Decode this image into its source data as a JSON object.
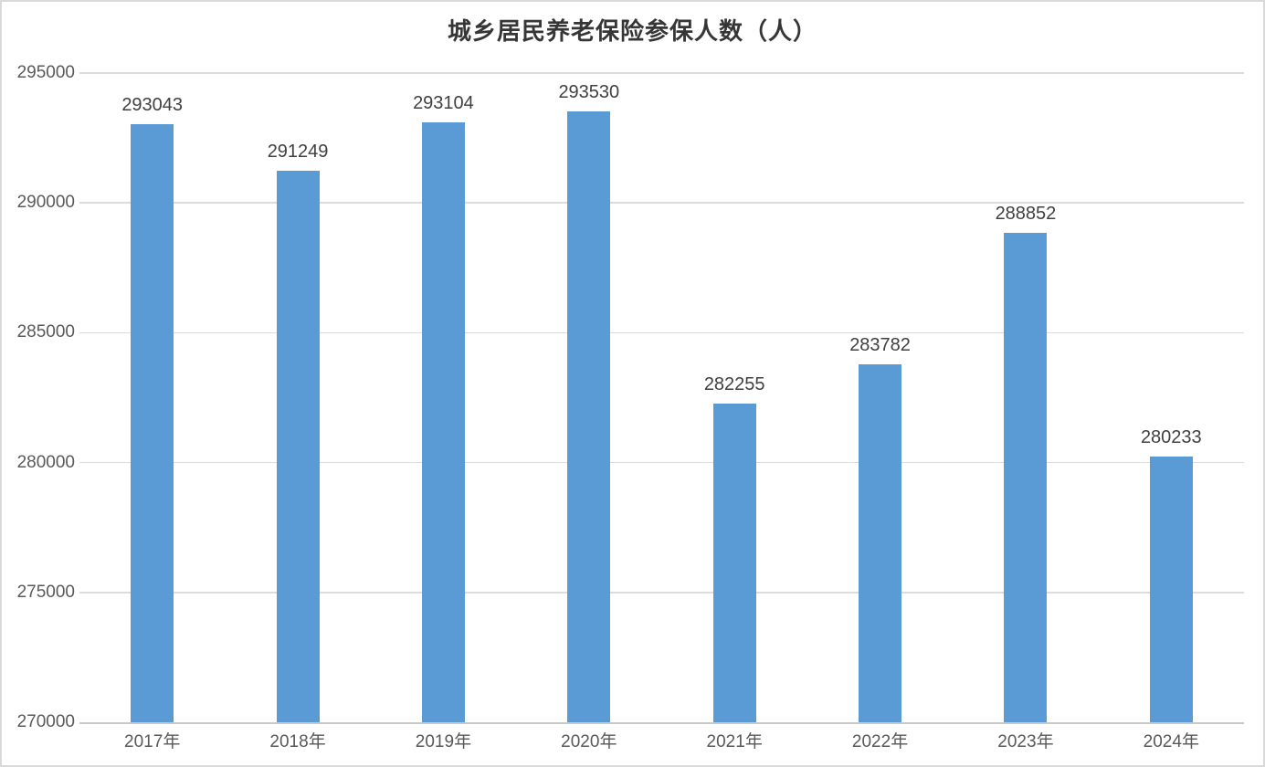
{
  "chart_data": {
    "type": "bar",
    "title": "城乡居民养老保险参保人数（人）",
    "categories": [
      "2017年",
      "2018年",
      "2019年",
      "2020年",
      "2021年",
      "2022年",
      "2023年",
      "2024年"
    ],
    "values": [
      293043,
      291249,
      293104,
      293530,
      282255,
      283782,
      288852,
      280233
    ],
    "value_labels": [
      "293043",
      "291249",
      "293104",
      "293530",
      "282255",
      "283782",
      "288852",
      "280233"
    ],
    "ylim": [
      270000,
      295000
    ],
    "ytick_step": 5000,
    "ytick_labels": [
      "295000",
      "290000",
      "285000",
      "280000",
      "275000",
      "270000"
    ],
    "xlabel": "",
    "ylabel": "",
    "grid": true,
    "legend_position": "none",
    "data_labels": true,
    "colors": {
      "bar": "#5b9bd5",
      "gridline": "#dcdcdc",
      "axis_line": "#c9c9c9",
      "tick_text": "#595959",
      "value_text": "#404040",
      "title_text": "#363636",
      "frame_border": "#d9d9d9",
      "background": "#ffffff"
    }
  }
}
